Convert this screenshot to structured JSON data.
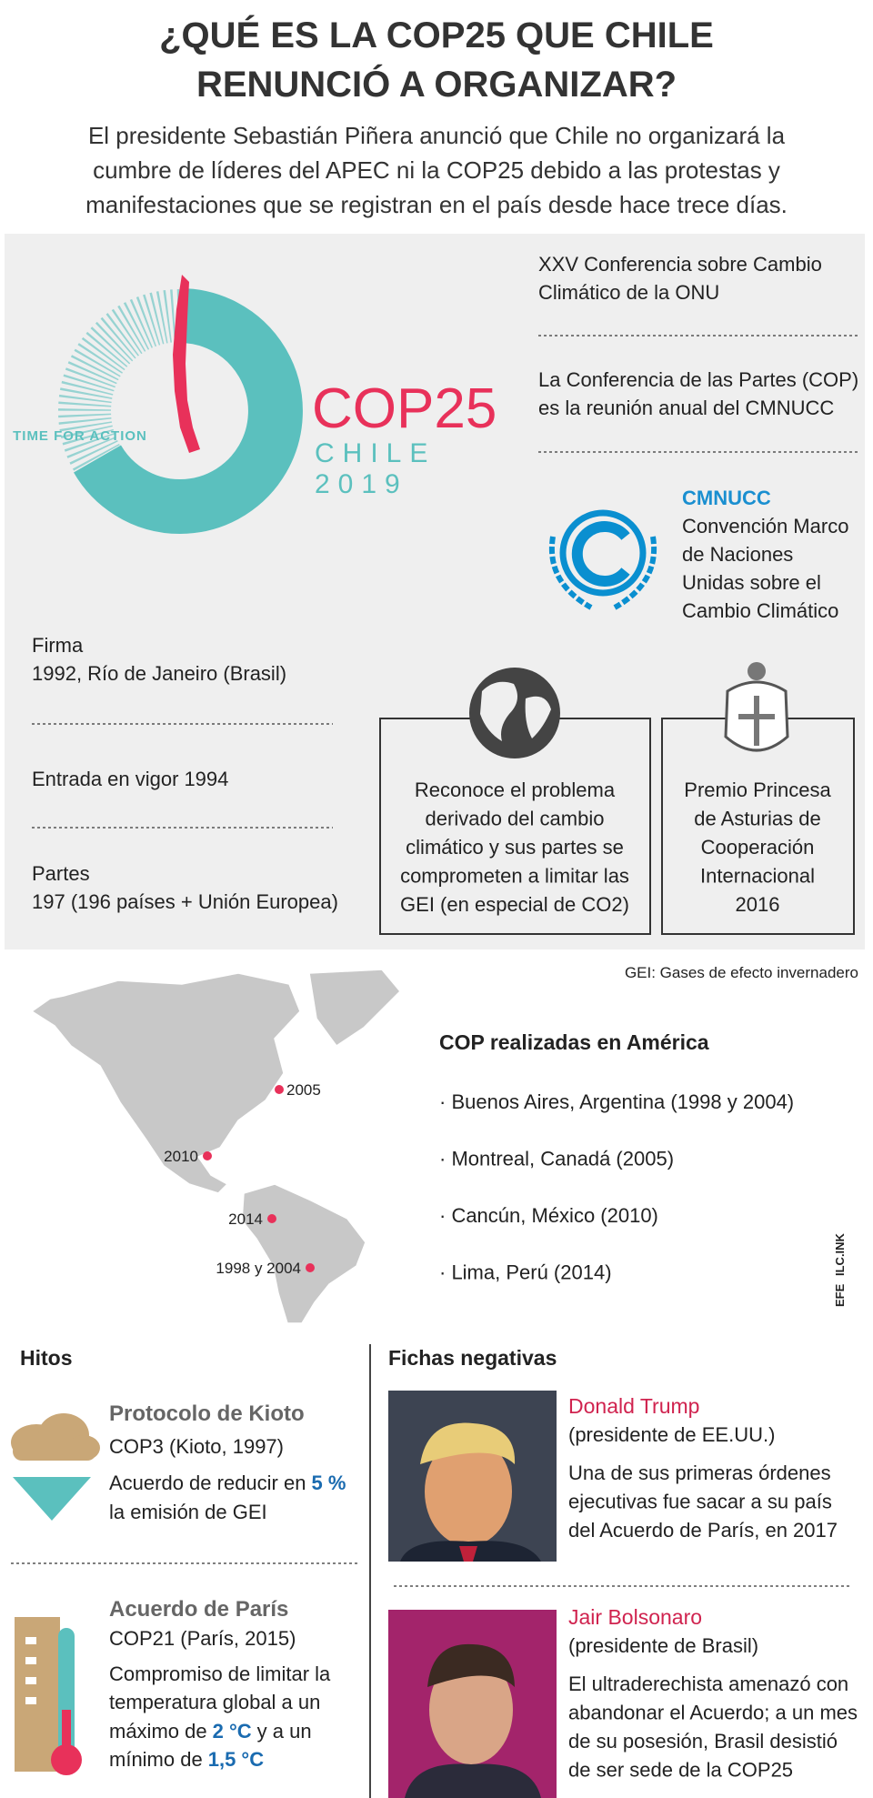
{
  "header": {
    "title": [
      "¿QUÉ ES LA COP25 QUE CHILE",
      "RENUNCIÓ A ORGANIZAR?"
    ],
    "subtitle": [
      "El presidente Sebastián Piñera anunció que Chile no organizará la",
      "cumbre de líderes del APEC ni la COP25 debido a las protestas y",
      "manifestaciones que se registran en el país desde hace trece días."
    ]
  },
  "logo": {
    "tagline": "TIME FOR ACTION",
    "name": "COP25",
    "country": "CHILE",
    "year": "2019"
  },
  "conference": {
    "name": [
      "XXV Conferencia sobre Cambio",
      "Climático de la ONU"
    ],
    "description": [
      "La Conferencia de las Partes (COP)",
      "es la reunión anual del CMNUCC"
    ]
  },
  "cmnucc": {
    "acronym": "CMNUCC",
    "full_name": [
      "Convención Marco",
      "de Naciones",
      "Unidas sobre el",
      "Cambio Climático"
    ]
  },
  "facts": {
    "signing_label": "Firma",
    "signing": "1992, Río de Janeiro (Brasil)",
    "entry_label": "Entrada en vigor",
    "entry_year": "1994",
    "parties_label": "Partes",
    "parties": "197 (196 países + Unión Europea)"
  },
  "boxes": [
    {
      "text": [
        "Reconoce el problema",
        "derivado del cambio",
        "climático y sus partes se",
        "comprometen a limitar las",
        "GEI (en especial de CO2)"
      ]
    },
    {
      "text": [
        "Premio Princesa",
        "de Asturias de",
        "Cooperación",
        "Internacional",
        "2016"
      ]
    }
  ],
  "note": "GEI: Gases de efecto invernadero",
  "map": {
    "labels": [
      "2005",
      "2010",
      "2014",
      "1998 y 2004"
    ]
  },
  "americas": {
    "title": "COP realizadas en América",
    "items": [
      "· Buenos Aires, Argentina (1998 y 2004)",
      "· Montreal, Canadá (2005)",
      "· Cancún, México (2010)",
      "· Lima, Perú (2014)"
    ]
  },
  "credit": [
    "EFE",
    "ILC.INK"
  ],
  "milestones": {
    "title": "Hitos",
    "items": [
      {
        "name": "Protocolo de Kioto",
        "event": "COP3 (Kioto, 1997)",
        "text": [
          "Acuerdo de reducir en",
          "5 %",
          "la emisión de GEI"
        ]
      },
      {
        "name": "Acuerdo de París",
        "event": "COP21 (París, 2015)",
        "text": [
          "Compromiso de limitar la",
          "temperatura global a un",
          "máximo de",
          "2 °C",
          "y a un",
          "mínimo de",
          "1,5 °C"
        ]
      }
    ]
  },
  "negatives": {
    "title": "Fichas negativas",
    "people": [
      {
        "name": "Donald Trump",
        "role": "(presidente de EE.UU.)",
        "text": [
          "Una de sus primeras órdenes",
          "ejecutivas fue sacar a su país",
          "del Acuerdo de París, en 2017"
        ]
      },
      {
        "name": "Jair Bolsonaro",
        "role": "(presidente de Brasil)",
        "text": [
          "El ultraderechista amenazó con",
          "abandonar el Acuerdo; a un mes",
          "de su posesión, Brasil desistió",
          "de ser sede de la COP25"
        ]
      }
    ]
  }
}
